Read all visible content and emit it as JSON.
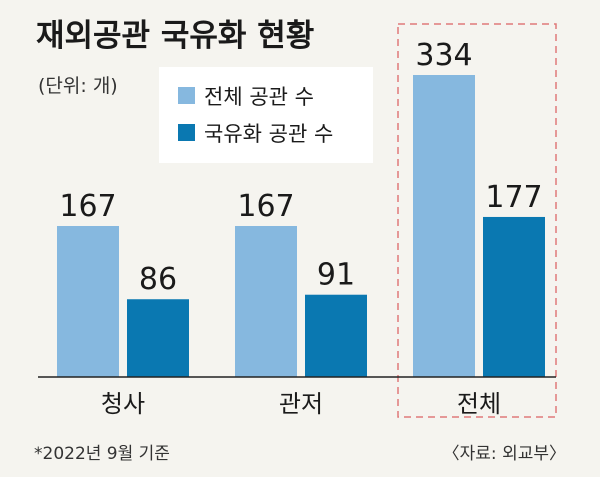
{
  "chart_data": {
    "type": "bar",
    "title": "재외공관 국유화 현황",
    "unit": "(단위: 개)",
    "categories": [
      "청사",
      "관저",
      "전체"
    ],
    "series": [
      {
        "name": "전체 공관 수",
        "values": [
          167,
          167,
          334
        ],
        "color": "#86b8df"
      },
      {
        "name": "국유화 공관 수",
        "values": [
          86,
          91,
          177
        ],
        "color": "#0a78b1"
      }
    ],
    "ylim": [
      0,
      334
    ],
    "highlight_category": "전체",
    "highlight_color": "#e07a7a",
    "footnote": "*2022년 9월 기준",
    "source": "〈자료: 외교부〉"
  }
}
